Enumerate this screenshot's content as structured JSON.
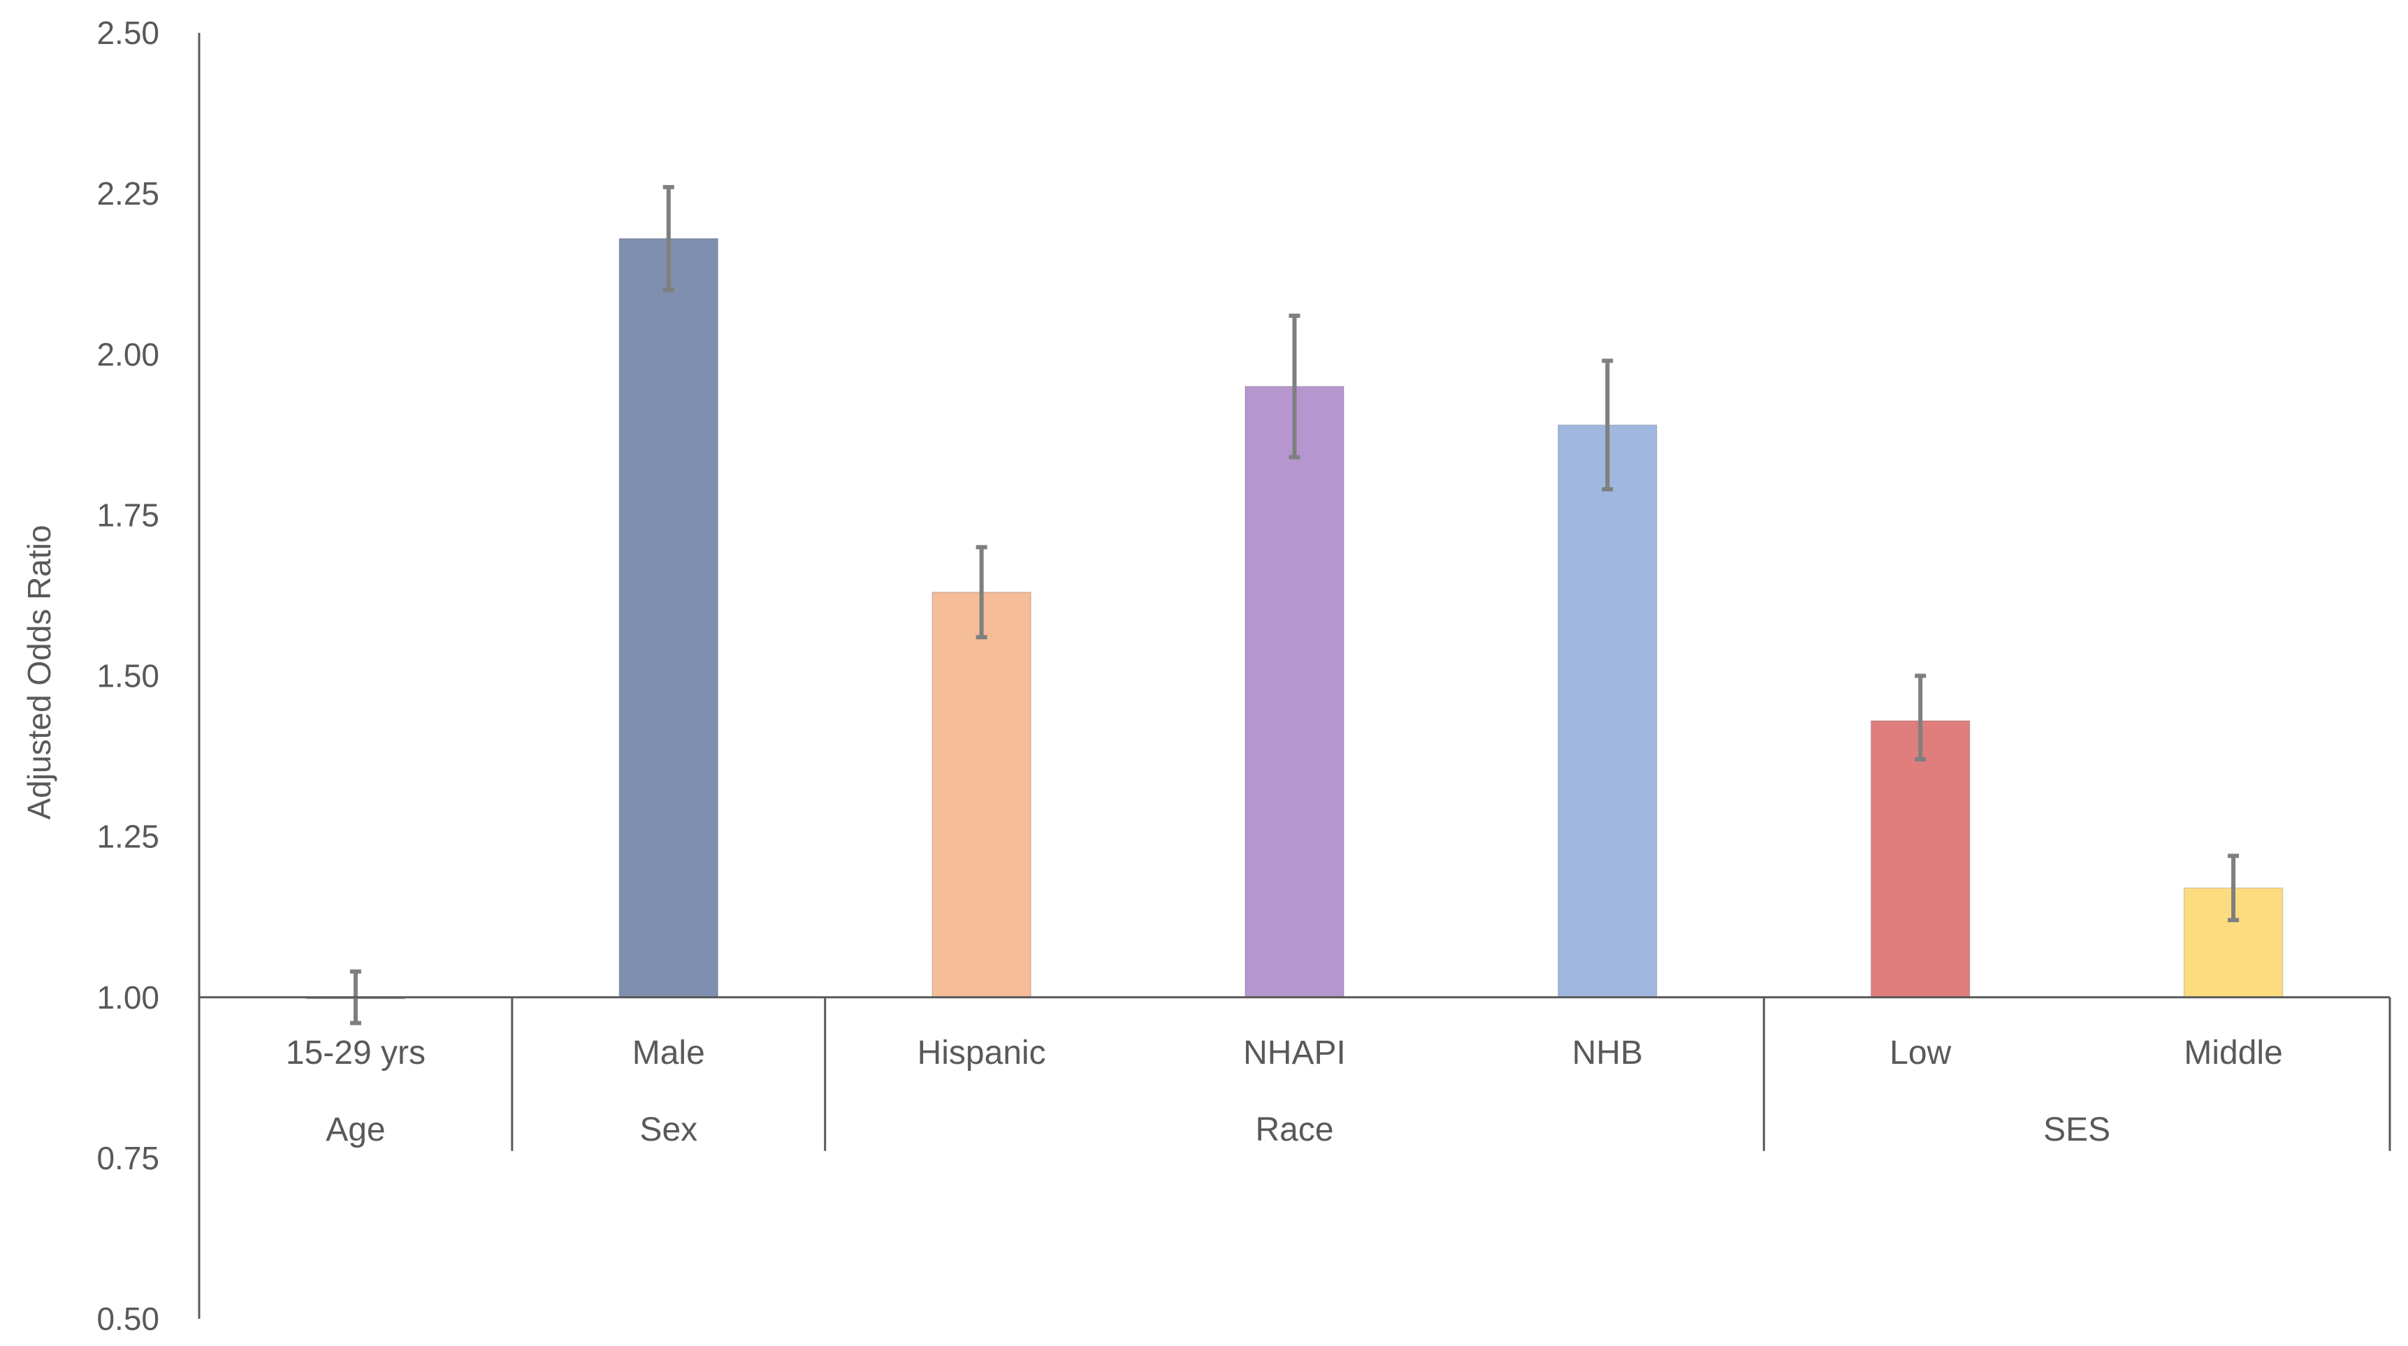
{
  "chart_data": {
    "type": "bar",
    "title": "",
    "xlabel": "",
    "ylabel": "Adjusted Odds Ratio",
    "ylim": [
      0.5,
      2.5
    ],
    "baseline": 1.0,
    "yticks": [
      "0.50",
      "0.75",
      "1.00",
      "1.25",
      "1.50",
      "1.75",
      "2.00",
      "2.25",
      "2.50"
    ],
    "grid": false,
    "legend": "none",
    "categories": [
      "15-29 yrs",
      "Male",
      "Hispanic",
      "NHAPI",
      "NHB",
      "Low",
      "Middle"
    ],
    "groups": [
      {
        "label": "Age",
        "categories": [
          "15-29 yrs"
        ]
      },
      {
        "label": "Sex",
        "categories": [
          "Male"
        ]
      },
      {
        "label": "Race",
        "categories": [
          "Hispanic",
          "NHAPI",
          "NHB"
        ]
      },
      {
        "label": "SES",
        "categories": [
          "Low",
          "Middle"
        ]
      }
    ],
    "values": [
      1.0,
      2.18,
      1.63,
      1.95,
      1.89,
      1.43,
      1.17
    ],
    "error_lower": [
      0.96,
      2.1,
      1.56,
      1.84,
      1.79,
      1.37,
      1.12
    ],
    "error_upper": [
      1.04,
      2.26,
      1.7,
      2.06,
      1.99,
      1.5,
      1.22
    ],
    "colors": [
      "#7f8fb0",
      "#7f8fb0",
      "#f5bd98",
      "#b596cf",
      "#a0b8e0",
      "#e07d7d",
      "#fddc80"
    ],
    "error_color": "#7f7f7f"
  }
}
